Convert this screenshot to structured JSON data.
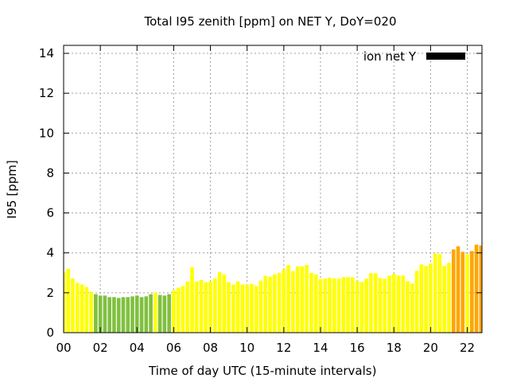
{
  "chart_data": {
    "type": "bar",
    "title": "Total I95 zenith [ppm] on NET Y, DoY=020",
    "xlabel": "Time of day UTC (15-minute intervals)",
    "ylabel": "I95 [ppm]",
    "xlim": [
      0,
      22.8
    ],
    "ylim": [
      0,
      14.4
    ],
    "grid": true,
    "x_ticks": [
      0,
      2,
      4,
      6,
      8,
      10,
      12,
      14,
      16,
      18,
      20,
      22
    ],
    "x_tick_labels": [
      "00",
      "02",
      "04",
      "06",
      "08",
      "10",
      "12",
      "14",
      "16",
      "18",
      "20",
      "22"
    ],
    "y_ticks": [
      0,
      2,
      4,
      6,
      8,
      10,
      12,
      14
    ],
    "y_tick_labels": [
      "0",
      "2",
      "4",
      "6",
      "8",
      "10",
      "12",
      "14"
    ],
    "legend": {
      "label": "ion net Y",
      "placement": "top-right",
      "color": "#000000"
    },
    "interval_hours": 0.25,
    "color_thresholds": {
      "low_below": 2.0,
      "high_above": 4.0
    },
    "colors": {
      "low": "#80c040",
      "mid": "#ffff00",
      "high": "#ffa500"
    },
    "values": [
      3.04,
      3.2,
      2.72,
      2.49,
      2.41,
      2.29,
      2.05,
      1.93,
      1.86,
      1.86,
      1.78,
      1.78,
      1.74,
      1.78,
      1.78,
      1.82,
      1.86,
      1.78,
      1.82,
      1.93,
      2.01,
      1.89,
      1.86,
      1.93,
      2.13,
      2.25,
      2.33,
      2.57,
      3.28,
      2.57,
      2.64,
      2.53,
      2.57,
      2.72,
      3.04,
      2.92,
      2.53,
      2.41,
      2.57,
      2.41,
      2.41,
      2.45,
      2.33,
      2.61,
      2.84,
      2.8,
      2.92,
      3.0,
      3.16,
      3.39,
      3.08,
      3.32,
      3.32,
      3.39,
      3.0,
      2.92,
      2.68,
      2.72,
      2.76,
      2.72,
      2.7,
      2.78,
      2.78,
      2.78,
      2.58,
      2.54,
      2.7,
      2.98,
      2.98,
      2.74,
      2.7,
      2.86,
      2.94,
      2.86,
      2.86,
      2.58,
      2.46,
      3.1,
      3.42,
      3.34,
      3.46,
      3.97,
      3.93,
      3.34,
      3.5,
      4.17,
      4.33,
      4.05,
      3.93,
      4.09,
      4.41,
      4.37
    ]
  }
}
